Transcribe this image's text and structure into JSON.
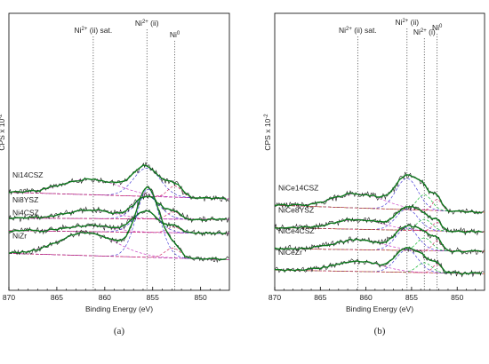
{
  "colors": {
    "envelope": "#0e7a1e",
    "raw": "#1a1a1a",
    "background": "#b0249a",
    "background_b": "#c06a2a",
    "sat_comp": "#c93cc0",
    "ni2_comp": "#4a3fd8",
    "ni2i_comp": "#12b832",
    "ni0_comp": "#d0306a",
    "annotation_line": "#555555",
    "axis": "#000000"
  },
  "chart_data": [
    {
      "type": "line",
      "panel_label": "(a)",
      "xlabel": "Binding Energy (eV)",
      "ylabel": "CPS x 10",
      "ylabel_exponent": "-2",
      "xlim": [
        870,
        847
      ],
      "xticks": [
        870,
        865,
        860,
        855,
        850
      ],
      "x_reversed": true,
      "annotations": [
        {
          "label": "Ni",
          "sup": "2+",
          "suffix": " (ii) sat.",
          "x": 861.2
        },
        {
          "label": "Ni",
          "sup": "2+",
          "suffix": " (ii)",
          "x": 855.6
        },
        {
          "label": "Ni",
          "sup": "0",
          "suffix": "",
          "x": 852.7
        }
      ],
      "series": [
        {
          "name": "Ni14CSZ",
          "offset": 3.2,
          "base": [
            0.35,
            0.12
          ],
          "peaks": [
            [
              861.5,
              3.0,
              0.55
            ],
            [
              855.6,
              1.4,
              1.0
            ],
            [
              852.7,
              0.7,
              0.4
            ]
          ]
        },
        {
          "name": "Ni8YSZ",
          "offset": 2.2,
          "base": [
            0.1,
            0.05
          ],
          "peaks": [
            [
              861.5,
              2.5,
              0.3
            ],
            [
              855.6,
              1.3,
              0.8
            ],
            [
              852.8,
              0.7,
              0.25
            ]
          ]
        },
        {
          "name": "Ni4CSZ",
          "offset": 1.45,
          "base": [
            0.15,
            0.05
          ],
          "peaks": [
            [
              861.5,
              2.5,
              0.2
            ],
            [
              855.7,
              1.3,
              0.75
            ],
            [
              852.8,
              0.7,
              0.2
            ]
          ]
        },
        {
          "name": "NiZr",
          "offset": 0.0,
          "base": [
            0.3,
            0.08
          ],
          "peaks": [
            [
              861.8,
              3.0,
              0.8
            ],
            [
              855.5,
              1.2,
              2.4
            ],
            [
              852.9,
              0.8,
              0.35
            ]
          ]
        }
      ]
    },
    {
      "type": "line",
      "panel_label": "(b)",
      "xlabel": "Binding Energy (eV)",
      "ylabel": "CPS x 10",
      "ylabel_exponent": "-2",
      "xlim": [
        870,
        847
      ],
      "xticks": [
        870,
        865,
        860,
        855,
        850
      ],
      "x_reversed": true,
      "annotations": [
        {
          "label": "Ni",
          "sup": "2+",
          "suffix": " (ii) sat.",
          "x": 860.9
        },
        {
          "label": "Ni",
          "sup": "2+",
          "suffix": " (ii)",
          "x": 855.5
        },
        {
          "label": "Ni",
          "sup": "2+",
          "suffix": " (i)",
          "x": 853.6
        },
        {
          "label": "Ni",
          "sup": "0",
          "suffix": "",
          "x": 852.2
        }
      ],
      "series": [
        {
          "name": "NiCe14CSZ",
          "offset": 3.3,
          "base": [
            0.3,
            0.05
          ],
          "peaks": [
            [
              860.8,
              2.8,
              0.5
            ],
            [
              855.5,
              1.2,
              1.1
            ],
            [
              853.6,
              0.8,
              0.55
            ],
            [
              852.2,
              0.5,
              0.4
            ]
          ]
        },
        {
          "name": "NiCe8YSZ",
          "offset": 2.25,
          "base": [
            0.2,
            0.05
          ],
          "peaks": [
            [
              860.8,
              2.6,
              0.35
            ],
            [
              855.5,
              1.2,
              0.75
            ],
            [
              853.6,
              0.8,
              0.4
            ],
            [
              852.2,
              0.5,
              0.3
            ]
          ]
        },
        {
          "name": "NiCe4CSZ",
          "offset": 1.2,
          "base": [
            0.15,
            0.05
          ],
          "peaks": [
            [
              860.8,
              2.6,
              0.35
            ],
            [
              855.5,
              1.2,
              0.8
            ],
            [
              853.6,
              0.8,
              0.45
            ],
            [
              852.2,
              0.5,
              0.35
            ]
          ]
        },
        {
          "name": "NiCeZr",
          "offset": 0.05,
          "base": [
            0.15,
            0.02
          ],
          "peaks": [
            [
              860.8,
              2.6,
              0.35
            ],
            [
              855.5,
              1.2,
              0.8
            ],
            [
              853.6,
              0.8,
              0.35
            ],
            [
              852.2,
              0.5,
              0.3
            ]
          ]
        }
      ]
    }
  ]
}
